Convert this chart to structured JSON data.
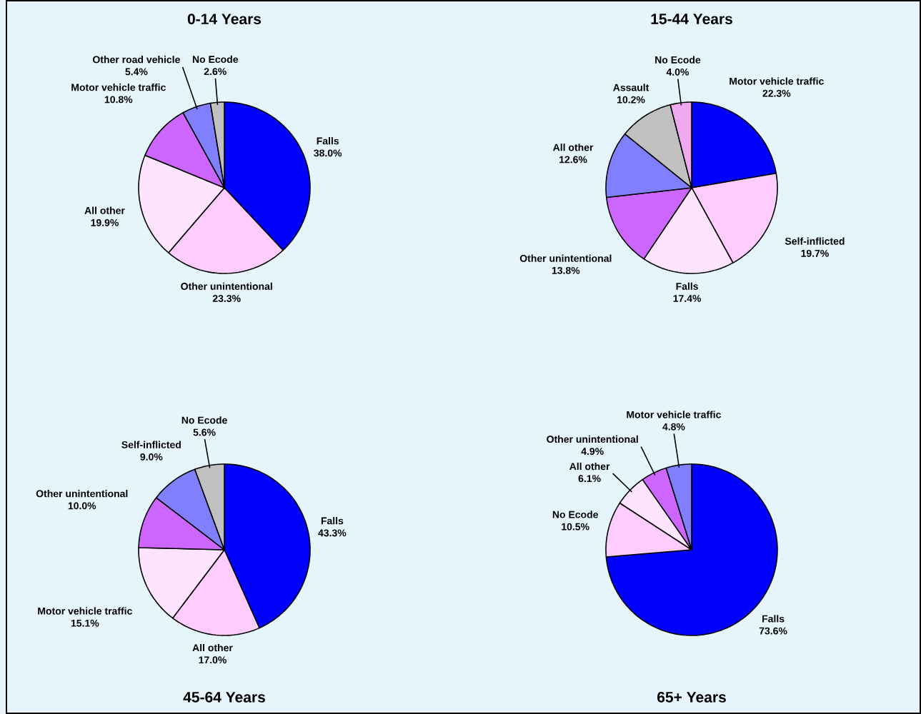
{
  "chart_data": [
    {
      "type": "pie",
      "title": "0-14 Years",
      "categories": [
        "Falls",
        "Other unintentional",
        "All other",
        "Motor vehicle traffic",
        "Other road vehicle",
        "No Ecode"
      ],
      "values": [
        38.0,
        23.3,
        19.9,
        10.8,
        5.4,
        2.6
      ],
      "value_labels": [
        "38.0%",
        "23.3%",
        "19.9%",
        "10.8%",
        "5.4%",
        "2.6%"
      ],
      "colors": [
        "#0000ff",
        "#ffccff",
        "#ffe4ff",
        "#cc66ff",
        "#8080ff",
        "#c0c0c0"
      ]
    },
    {
      "type": "pie",
      "title": "15-44 Years",
      "categories": [
        "Motor vehicle traffic",
        "Self-inflicted",
        "Falls",
        "Other unintentional",
        "All other",
        "Assault",
        "No Ecode"
      ],
      "values": [
        22.3,
        19.7,
        17.4,
        13.8,
        12.6,
        10.2,
        4.0
      ],
      "value_labels": [
        "22.3%",
        "19.7%",
        "17.4%",
        "13.8%",
        "12.6%",
        "10.2%",
        "4.0%"
      ],
      "colors": [
        "#0000ff",
        "#ffccff",
        "#ffe4ff",
        "#cc66ff",
        "#8080ff",
        "#c0c0c0",
        "#f0a8f0"
      ]
    },
    {
      "type": "pie",
      "title": "45-64 Years",
      "categories": [
        "Falls",
        "All other",
        "Motor vehicle traffic",
        "Other unintentional",
        "Self-inflicted",
        "No Ecode"
      ],
      "values": [
        43.3,
        17.0,
        15.1,
        10.0,
        9.0,
        5.6
      ],
      "value_labels": [
        "43.3%",
        "17.0%",
        "15.1%",
        "10.0%",
        "9.0%",
        "5.6%"
      ],
      "colors": [
        "#0000ff",
        "#ffccff",
        "#ffe4ff",
        "#cc66ff",
        "#8080ff",
        "#c0c0c0"
      ]
    },
    {
      "type": "pie",
      "title": "65+ Years",
      "categories": [
        "Falls",
        "No Ecode",
        "All other",
        "Other unintentional",
        "Motor vehicle traffic"
      ],
      "values": [
        73.6,
        10.5,
        6.1,
        4.9,
        4.8
      ],
      "value_labels": [
        "73.6%",
        "10.5%",
        "6.1%",
        "4.9%",
        "4.8%"
      ],
      "colors": [
        "#0000ff",
        "#ffccff",
        "#ffe4ff",
        "#cc66ff",
        "#8080ff"
      ]
    }
  ]
}
